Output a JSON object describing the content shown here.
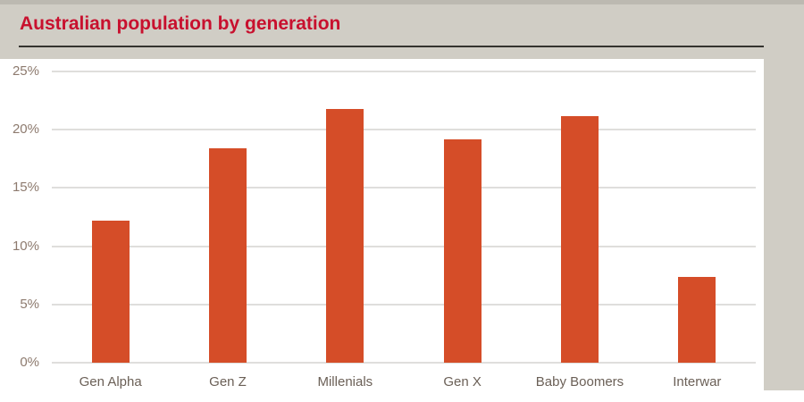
{
  "header": {
    "title": "Australian population by generation"
  },
  "chart_data": {
    "type": "bar",
    "title": "Australian population by generation",
    "categories": [
      "Gen Alpha",
      "Gen Z",
      "Millenials",
      "Gen X",
      "Baby Boomers",
      "Interwar"
    ],
    "values": [
      12.2,
      18.4,
      21.8,
      19.2,
      21.2,
      7.4
    ],
    "unit": "%",
    "xlabel": "",
    "ylabel": "",
    "ylim": [
      0,
      25
    ],
    "ytick_step": 5,
    "ytick_labels": [
      "0%",
      "5%",
      "10%",
      "15%",
      "20%",
      "25%"
    ],
    "grid": true,
    "legend": false
  },
  "colors": {
    "background": "#d0cdc5",
    "background_top_edge": "#bcb9b1",
    "plot_background": "#ffffff",
    "bar": "#d54d28",
    "title": "#c8102e",
    "title_rule": "#34332f",
    "gridline": "#dfdedc",
    "ytick_label": "#8d7a6e",
    "xtick_label": "#6b6057"
  }
}
